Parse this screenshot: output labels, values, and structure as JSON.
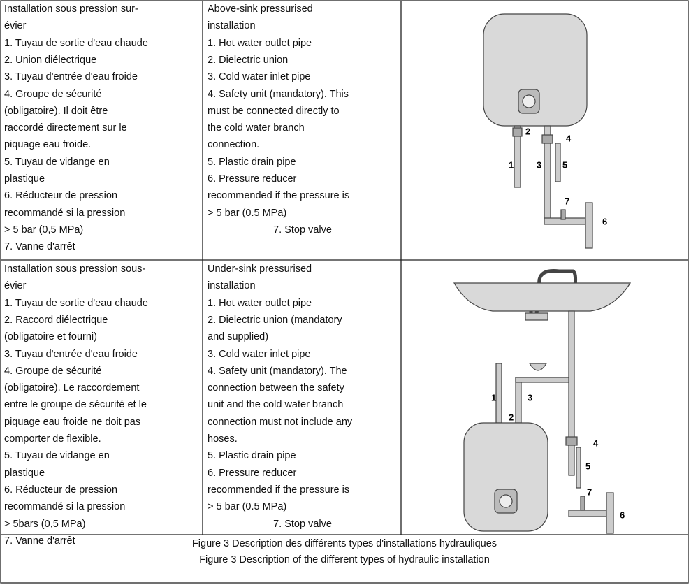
{
  "rows": [
    {
      "french": [
        "Installation sous pression sur-",
        "évier",
        "1. Tuyau de sortie d'eau chaude",
        "2. Union diélectrique",
        "3. Tuyau d'entrée d'eau froide",
        "4. Groupe de sécurité",
        "(obligatoire). Il doit être",
        "raccordé directement sur le",
        "piquage eau froide.",
        "5. Tuyau de vidange en",
        "plastique",
        "6. Réducteur de pression",
        "recommandé si la pression",
        "> 5 bar (0,5 MPa)",
        "7. Vanne d'arrêt"
      ],
      "english": [
        "Above-sink pressurised",
        "installation",
        "1. Hot water outlet pipe",
        "2. Dielectric union",
        "3. Cold water inlet pipe",
        "4. Safety unit (mandatory). This",
        "must be connected directly to",
        "the cold water branch",
        "connection.",
        "5. Plastic drain pipe",
        "6. Pressure reducer",
        "recommended if the pressure is",
        "> 5 bar (0.5 MPa)",
        "7. Stop valve"
      ],
      "diagram_labels": [
        "1",
        "2",
        "3",
        "4",
        "5",
        "6",
        "7"
      ]
    },
    {
      "french": [
        "Installation sous pression sous-",
        "évier",
        "1. Tuyau de sortie d'eau chaude",
        "2. Raccord diélectrique",
        "(obligatoire et fourni)",
        "3. Tuyau d'entrée d'eau froide",
        "4. Groupe de sécurité",
        "(obligatoire). Le raccordement",
        "entre le groupe de sécurité et le",
        "piquage eau froide ne doit pas",
        "comporter de flexible.",
        "5. Tuyau de vidange en",
        "plastique",
        "6. Réducteur de pression",
        "recommandé si la pression",
        "> 5bars (0,5 MPa)",
        "7. Vanne d'arrêt"
      ],
      "english": [
        "Under-sink pressurised",
        "installation",
        "1. Hot water outlet pipe",
        "2. Dielectric union (mandatory",
        "and supplied)",
        "3. Cold water inlet pipe",
        "4. Safety unit (mandatory). The",
        "connection between the safety",
        "unit and the cold water branch",
        "connection must not include any",
        "hoses.",
        "5. Plastic drain pipe",
        "6. Pressure reducer",
        "recommended if the pressure is",
        "> 5 bar (0.5 MPa)",
        "7. Stop valve"
      ],
      "diagram_labels": [
        "1",
        "2",
        "3",
        "4",
        "5",
        "6",
        "7"
      ]
    }
  ],
  "caption": [
    "Figure 3 Description des différents types d'installations hydrauliques",
    "Figure 3 Description of the different types of hydraulic installation"
  ]
}
